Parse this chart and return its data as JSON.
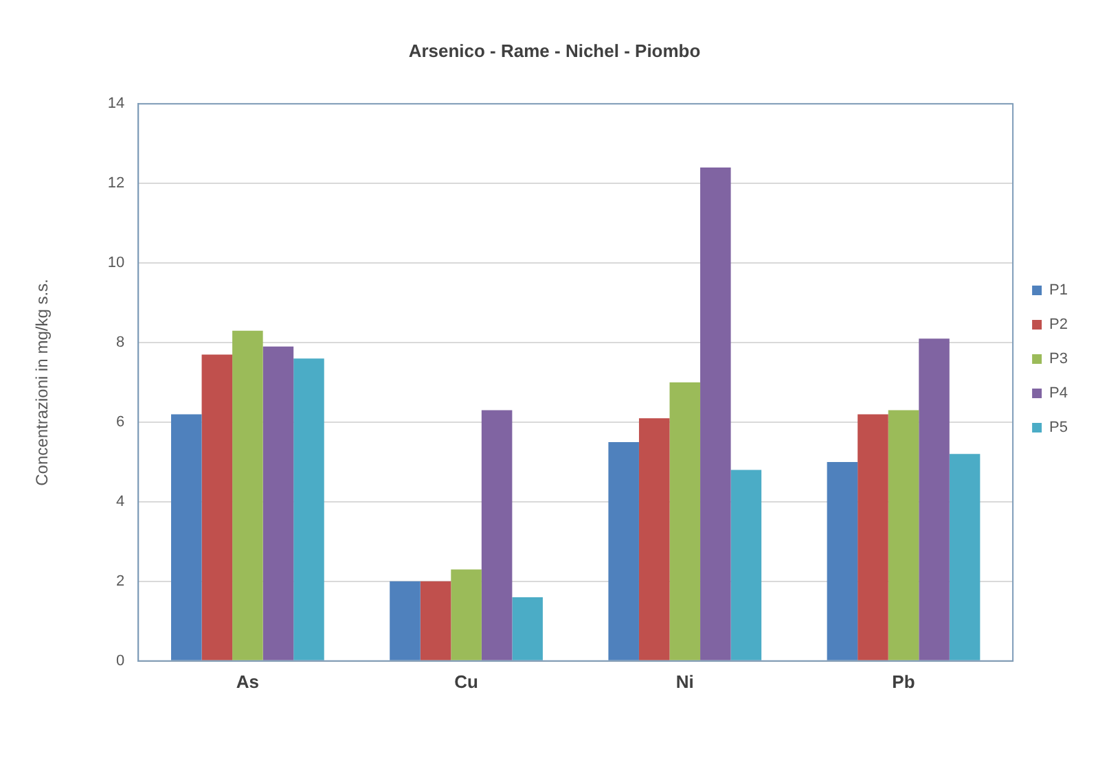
{
  "chart_data": {
    "type": "bar",
    "title": "Arsenico - Rame - Nichel - Piombo",
    "ylabel": "Concentrazioni in mg/kg s.s.",
    "categories": [
      "As",
      "Cu",
      "Ni",
      "Pb"
    ],
    "series": [
      {
        "name": "P1",
        "color": "#4f81bd",
        "values": [
          6.2,
          2.0,
          5.5,
          5.0
        ]
      },
      {
        "name": "P2",
        "color": "#c0504d",
        "values": [
          7.7,
          2.0,
          6.1,
          6.2
        ]
      },
      {
        "name": "P3",
        "color": "#9bbb59",
        "values": [
          8.3,
          2.3,
          7.0,
          6.3
        ]
      },
      {
        "name": "P4",
        "color": "#8064a2",
        "values": [
          7.9,
          6.3,
          12.4,
          8.1
        ]
      },
      {
        "name": "P5",
        "color": "#4bacc6",
        "values": [
          7.6,
          1.6,
          4.8,
          5.2
        ]
      }
    ],
    "ylim": [
      0,
      14
    ],
    "yticks": [
      0,
      2,
      4,
      6,
      8,
      10,
      12,
      14
    ],
    "grid": "y",
    "legend": "right"
  }
}
